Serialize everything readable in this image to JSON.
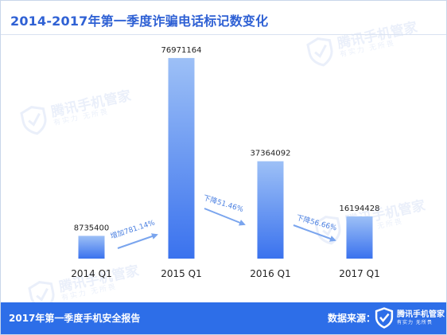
{
  "header": {
    "title": "2014-2017年第一季度诈骗电话标记数变化"
  },
  "watermark": {
    "brand": "腾讯手机管家",
    "slogan": "有实力 无所畏",
    "icon": "shield-check-icon"
  },
  "footer": {
    "report_title": "2017年第一季度手机安全报告",
    "source_label": "数据来源：",
    "logo_brand": "腾讯手机管家",
    "logo_slogan": "有实力 无所畏",
    "logo_icon": "shield-check-icon"
  },
  "colors": {
    "title": "#2f61d4",
    "bar_top": "#9dc0f6",
    "bar_bottom": "#3a72ee",
    "arrow": "#7aa5ee",
    "footer_bg": "#2d6ee8"
  },
  "chart_data": {
    "type": "bar",
    "categories": [
      "2014 Q1",
      "2015 Q1",
      "2016 Q1",
      "2017 Q1"
    ],
    "values": [
      8735400,
      76971164,
      37364092,
      16194428
    ],
    "value_labels": [
      "8735400",
      "76971164",
      "37364092",
      "16194428"
    ],
    "ylim": [
      0,
      80000000
    ],
    "grid": false,
    "legend": "none",
    "annotations": [
      {
        "from": "2014 Q1",
        "to": "2015 Q1",
        "text": "增加781.14%"
      },
      {
        "from": "2015 Q1",
        "to": "2016 Q1",
        "text": "下降51.46%"
      },
      {
        "from": "2016 Q1",
        "to": "2017 Q1",
        "text": "下降56.66%"
      }
    ]
  }
}
